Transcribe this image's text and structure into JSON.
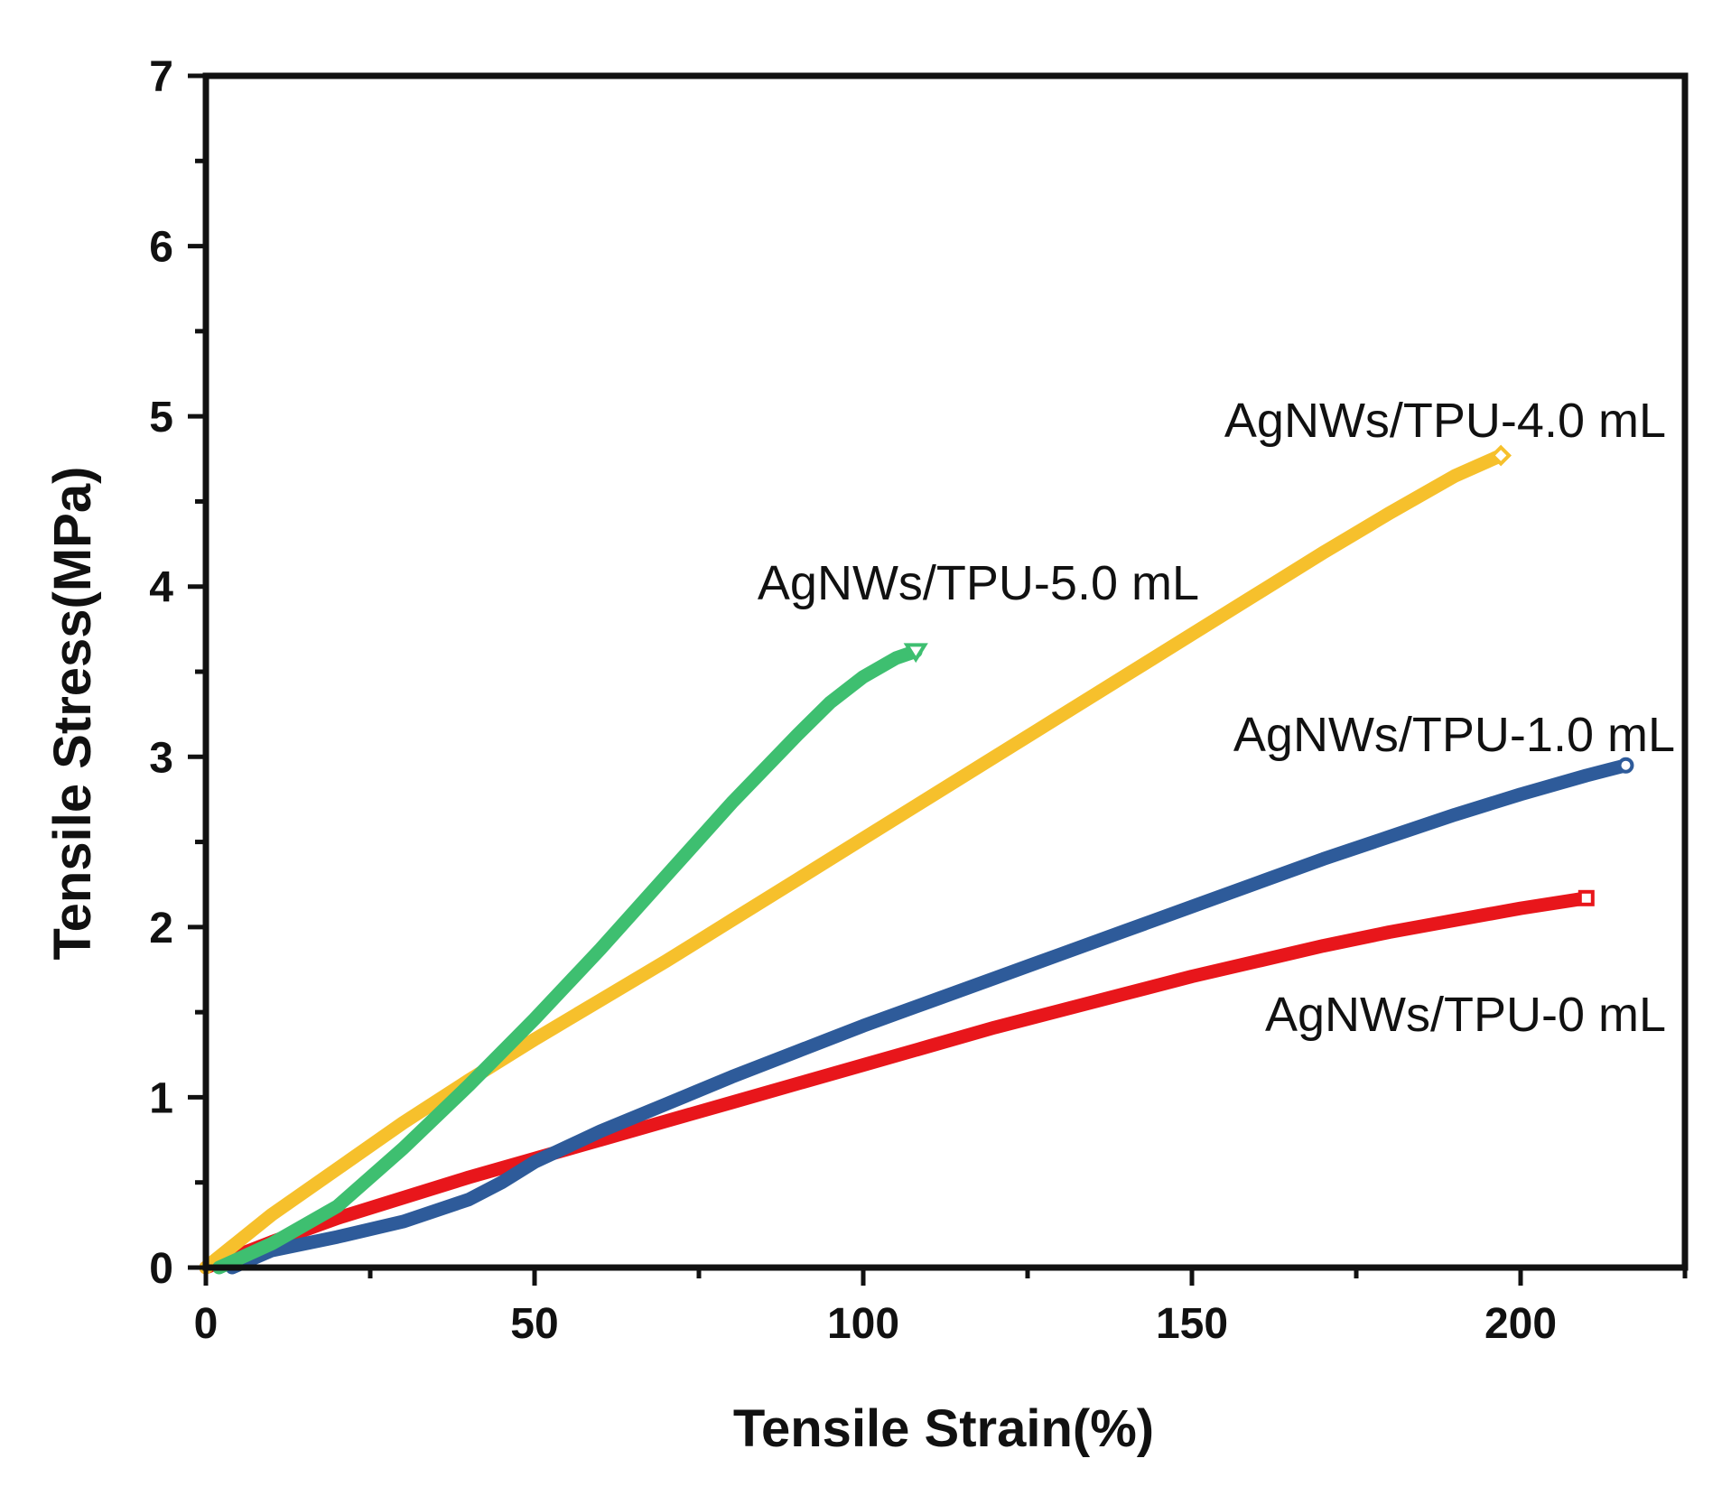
{
  "chart_data": {
    "type": "line",
    "title": "",
    "xlabel": "Tensile Strain(%)",
    "ylabel": "Tensile Stress(MPa)",
    "xlim": [
      0,
      225
    ],
    "ylim": [
      0,
      7
    ],
    "xticks": [
      0,
      50,
      100,
      150,
      200
    ],
    "yticks": [
      0,
      1,
      2,
      3,
      4,
      5,
      6,
      7
    ],
    "xtick_labels": [
      "0",
      "50",
      "100",
      "150",
      "200"
    ],
    "ytick_labels": [
      "0",
      "1",
      "2",
      "3",
      "4",
      "5",
      "6",
      "7"
    ],
    "grid": false,
    "legend": "inline labels",
    "series": [
      {
        "name": "AgNWs/TPU-0 mL",
        "label": "AgNWs/TPU-0 mL",
        "color": "#e8161b",
        "marker": "square",
        "x": [
          0,
          10,
          20,
          30,
          40,
          50,
          60,
          70,
          80,
          90,
          100,
          110,
          120,
          130,
          140,
          150,
          160,
          170,
          180,
          190,
          200,
          210
        ],
        "y": [
          0,
          0.15,
          0.29,
          0.41,
          0.53,
          0.64,
          0.75,
          0.86,
          0.97,
          1.08,
          1.19,
          1.3,
          1.41,
          1.51,
          1.61,
          1.71,
          1.8,
          1.89,
          1.97,
          2.04,
          2.11,
          2.17
        ]
      },
      {
        "name": "AgNWs/TPU-1.0 mL",
        "label": "AgNWs/TPU-1.0 mL",
        "color": "#2e5b9a",
        "marker": "circle",
        "x": [
          4,
          10,
          20,
          30,
          40,
          45,
          50,
          60,
          70,
          80,
          90,
          100,
          110,
          120,
          130,
          140,
          150,
          160,
          170,
          180,
          190,
          200,
          210,
          216
        ],
        "y": [
          0,
          0.1,
          0.18,
          0.27,
          0.4,
          0.5,
          0.62,
          0.8,
          0.96,
          1.12,
          1.27,
          1.42,
          1.56,
          1.7,
          1.84,
          1.98,
          2.12,
          2.26,
          2.4,
          2.53,
          2.66,
          2.78,
          2.89,
          2.95
        ]
      },
      {
        "name": "AgNWs/TPU-4.0 mL",
        "label": "AgNWs/TPU-4.0 mL",
        "color": "#f6c02c",
        "marker": "diamond",
        "x": [
          0,
          10,
          20,
          30,
          40,
          50,
          60,
          70,
          80,
          90,
          100,
          110,
          120,
          130,
          140,
          150,
          160,
          170,
          180,
          190,
          197
        ],
        "y": [
          0,
          0.31,
          0.58,
          0.85,
          1.1,
          1.34,
          1.57,
          1.8,
          2.04,
          2.28,
          2.52,
          2.76,
          3.0,
          3.24,
          3.48,
          3.72,
          3.96,
          4.2,
          4.43,
          4.65,
          4.77
        ]
      },
      {
        "name": "AgNWs/TPU-5.0 mL",
        "label": "AgNWs/TPU-5.0 mL",
        "color": "#3ebf70",
        "marker": "triangle",
        "x": [
          2,
          10,
          20,
          30,
          40,
          50,
          60,
          70,
          80,
          90,
          95,
          100,
          105,
          108
        ],
        "y": [
          0,
          0.14,
          0.36,
          0.7,
          1.07,
          1.46,
          1.87,
          2.3,
          2.73,
          3.13,
          3.32,
          3.47,
          3.58,
          3.62
        ]
      }
    ]
  }
}
